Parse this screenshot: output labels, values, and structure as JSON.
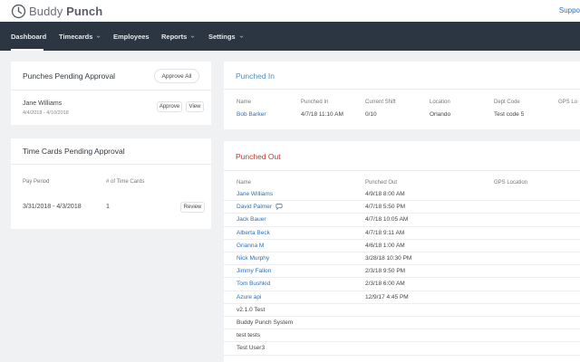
{
  "app": {
    "logo_text_light": "Buddy ",
    "logo_text_bold": "Punch",
    "support_label": "Suppo"
  },
  "nav": {
    "items": [
      {
        "label": "Dashboard",
        "dropdown": false,
        "active": true
      },
      {
        "label": "Timecards",
        "dropdown": true
      },
      {
        "label": "Employees",
        "dropdown": false
      },
      {
        "label": "Reports",
        "dropdown": true
      },
      {
        "label": "Settings",
        "dropdown": true
      }
    ]
  },
  "punches_pending": {
    "title": "Punches Pending Approval",
    "approve_all_label": "Approve All",
    "entry": {
      "name": "Jane Williams",
      "dates": "4/4/2018 - 4/10/2018"
    },
    "approve_label": "Approve",
    "view_label": "View"
  },
  "timecards_pending": {
    "title": "Time Cards Pending Approval",
    "headers": [
      "Pay Period",
      "# of Time Cards"
    ],
    "row": {
      "period": "3/31/2018 - 4/3/2018",
      "count": "1"
    },
    "review_label": "Review"
  },
  "punched_in": {
    "title": "Punched In",
    "headers": [
      "Name",
      "Punched In",
      "Current Shift",
      "Location",
      "Dept Code",
      "GPS Lo"
    ],
    "row": {
      "name": "Bob Barker",
      "punched_in": "4/7/18 11:10 AM",
      "shift": "0/10",
      "location": "Orlando",
      "dept": "Test code 5"
    }
  },
  "punched_out": {
    "title": "Punched Out",
    "headers": [
      "Name",
      "Punched Out",
      "GPS Location"
    ],
    "rows": [
      {
        "name": "Jane Williams",
        "time": "4/9/18 8:00 AM",
        "link": true
      },
      {
        "name": "David Palmer",
        "time": "4/7/18 5:50 PM",
        "link": true,
        "comment": true
      },
      {
        "name": "Jack Bauer",
        "time": "4/7/18 10:05 AM",
        "link": true
      },
      {
        "name": "Alberta Beck",
        "time": "4/7/18 9:11 AM",
        "link": true
      },
      {
        "name": "Grianna M",
        "time": "4/6/18 1:00 AM",
        "link": true
      },
      {
        "name": "Nick Murphy",
        "time": "3/28/18 10:30 PM",
        "link": true
      },
      {
        "name": "Jimmy Fallon",
        "time": "2/3/18 9:50 PM",
        "link": true
      },
      {
        "name": "Tom Bushkid",
        "time": "2/3/18 6:00 AM",
        "link": true
      },
      {
        "name": "Azure api",
        "time": "12/9/17 4:45 PM",
        "link": true
      },
      {
        "name": "v2.1.0 Test",
        "time": "",
        "link": false
      },
      {
        "name": "Buddy Punch System",
        "time": "",
        "link": false
      },
      {
        "name": "test tests",
        "time": "",
        "link": false
      },
      {
        "name": "Test User3",
        "time": "",
        "link": false
      }
    ]
  },
  "colors": {
    "nav_bg": "#2c3642",
    "link_blue": "#2f6fb0",
    "punched_in_title": "#4a90c8",
    "punched_out_title": "#c0392b"
  }
}
